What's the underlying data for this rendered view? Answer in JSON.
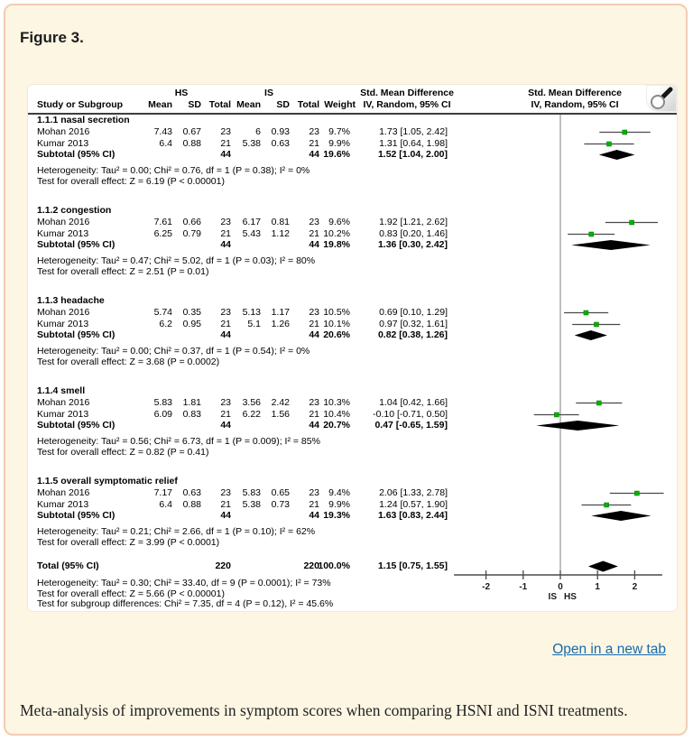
{
  "page": {
    "figure_label": "Figure 3.",
    "open_link_label": "Open in a new tab",
    "caption": "Meta-analysis of improvements in symptom scores when comparing HSNI and ISNI treatments.",
    "magnifier_icon": "magnifying-glass",
    "colors": {
      "card_bg": "#fcf6e3",
      "card_border": "#f4ccb3",
      "link": "#176bac",
      "marker_green": "#00b300",
      "diamond": "#000000",
      "axis": "#4a4a4a"
    }
  },
  "chart_data": {
    "type": "forest",
    "title": "Figure 3.",
    "columns": {
      "study": "Study or Subgroup",
      "mean": "Mean",
      "sd": "SD",
      "total": "Total",
      "weight": "Weight",
      "group1": "HS",
      "group2": "IS",
      "smd": "Std. Mean Difference",
      "method": "IV, Random, 95% CI"
    },
    "axis": {
      "tick_values": [
        -2,
        -1,
        0,
        1,
        2
      ],
      "xmin": -2.86,
      "xmax": 2.74,
      "left_label": "IS",
      "right_label": "HS"
    },
    "sections": [
      {
        "label": "1.1.1 nasal secretion",
        "studies": [
          {
            "name": "Mohan 2016",
            "hs_mean": "7.43",
            "hs_sd": "0.67",
            "hs_total": "23",
            "is_mean": "6",
            "is_sd": "0.93",
            "is_total": "23",
            "weight": "9.7%",
            "ci_text": "1.73 [1.05, 2.42]",
            "est": 1.73,
            "lo": 1.05,
            "hi": 2.42
          },
          {
            "name": "Kumar 2013",
            "hs_mean": "6.4",
            "hs_sd": "0.88",
            "hs_total": "21",
            "is_mean": "5.38",
            "is_sd": "0.63",
            "is_total": "21",
            "weight": "9.9%",
            "ci_text": "1.31 [0.64, 1.98]",
            "est": 1.31,
            "lo": 0.64,
            "hi": 1.98
          }
        ],
        "subtotal": {
          "label": "Subtotal (95% CI)",
          "hs_total": "44",
          "is_total": "44",
          "weight": "19.6%",
          "ci_text": "1.52 [1.04, 2.00]",
          "est": 1.52,
          "lo": 1.04,
          "hi": 2.0
        },
        "heterogeneity": "Heterogeneity: Tau² = 0.00; Chi² = 0.76, df = 1 (P = 0.38); I² = 0%",
        "overall_effect": "Test for overall effect: Z = 6.19 (P < 0.00001)"
      },
      {
        "label": "1.1.2 congestion",
        "studies": [
          {
            "name": "Mohan 2016",
            "hs_mean": "7.61",
            "hs_sd": "0.66",
            "hs_total": "23",
            "is_mean": "6.17",
            "is_sd": "0.81",
            "is_total": "23",
            "weight": "9.6%",
            "ci_text": "1.92 [1.21, 2.62]",
            "est": 1.92,
            "lo": 1.21,
            "hi": 2.62
          },
          {
            "name": "Kumar 2013",
            "hs_mean": "6.25",
            "hs_sd": "0.79",
            "hs_total": "21",
            "is_mean": "5.43",
            "is_sd": "1.12",
            "is_total": "21",
            "weight": "10.2%",
            "ci_text": "0.83 [0.20, 1.46]",
            "est": 0.83,
            "lo": 0.2,
            "hi": 1.46
          }
        ],
        "subtotal": {
          "label": "Subtotal (95% CI)",
          "hs_total": "44",
          "is_total": "44",
          "weight": "19.8%",
          "ci_text": "1.36 [0.30, 2.42]",
          "est": 1.36,
          "lo": 0.3,
          "hi": 2.42
        },
        "heterogeneity": "Heterogeneity: Tau² = 0.47; Chi² = 5.02, df = 1 (P = 0.03); I² = 80%",
        "overall_effect": "Test for overall effect: Z = 2.51 (P = 0.01)"
      },
      {
        "label": "1.1.3 headache",
        "studies": [
          {
            "name": "Mohan 2016",
            "hs_mean": "5.74",
            "hs_sd": "0.35",
            "hs_total": "23",
            "is_mean": "5.13",
            "is_sd": "1.17",
            "is_total": "23",
            "weight": "10.5%",
            "ci_text": "0.69 [0.10, 1.29]",
            "est": 0.69,
            "lo": 0.1,
            "hi": 1.29
          },
          {
            "name": "Kumar 2013",
            "hs_mean": "6.2",
            "hs_sd": "0.95",
            "hs_total": "21",
            "is_mean": "5.1",
            "is_sd": "1.26",
            "is_total": "21",
            "weight": "10.1%",
            "ci_text": "0.97 [0.32, 1.61]",
            "est": 0.97,
            "lo": 0.32,
            "hi": 1.61
          }
        ],
        "subtotal": {
          "label": "Subtotal (95% CI)",
          "hs_total": "44",
          "is_total": "44",
          "weight": "20.6%",
          "ci_text": "0.82 [0.38, 1.26]",
          "est": 0.82,
          "lo": 0.38,
          "hi": 1.26
        },
        "heterogeneity": "Heterogeneity: Tau² = 0.00; Chi² = 0.37, df = 1 (P = 0.54); I² = 0%",
        "overall_effect": "Test for overall effect: Z = 3.68 (P = 0.0002)"
      },
      {
        "label": "1.1.4 smell",
        "studies": [
          {
            "name": "Mohan 2016",
            "hs_mean": "5.83",
            "hs_sd": "1.81",
            "hs_total": "23",
            "is_mean": "3.56",
            "is_sd": "2.42",
            "is_total": "23",
            "weight": "10.3%",
            "ci_text": "1.04 [0.42, 1.66]",
            "est": 1.04,
            "lo": 0.42,
            "hi": 1.66
          },
          {
            "name": "Kumar 2013",
            "hs_mean": "6.09",
            "hs_sd": "0.83",
            "hs_total": "21",
            "is_mean": "6.22",
            "is_sd": "1.56",
            "is_total": "21",
            "weight": "10.4%",
            "ci_text": "-0.10 [-0.71, 0.50]",
            "est": -0.1,
            "lo": -0.71,
            "hi": 0.5
          }
        ],
        "subtotal": {
          "label": "Subtotal (95% CI)",
          "hs_total": "44",
          "is_total": "44",
          "weight": "20.7%",
          "ci_text": "0.47 [-0.65, 1.59]",
          "est": 0.47,
          "lo": -0.65,
          "hi": 1.59
        },
        "heterogeneity": "Heterogeneity: Tau² = 0.56; Chi² = 6.73, df = 1 (P = 0.009); I² = 85%",
        "overall_effect": "Test for overall effect: Z = 0.82 (P = 0.41)"
      },
      {
        "label": "1.1.5 overall symptomatic relief",
        "studies": [
          {
            "name": "Mohan 2016",
            "hs_mean": "7.17",
            "hs_sd": "0.63",
            "hs_total": "23",
            "is_mean": "5.83",
            "is_sd": "0.65",
            "is_total": "23",
            "weight": "9.4%",
            "ci_text": "2.06 [1.33, 2.78]",
            "est": 2.06,
            "lo": 1.33,
            "hi": 2.78
          },
          {
            "name": "Kumar 2013",
            "hs_mean": "6.4",
            "hs_sd": "0.88",
            "hs_total": "21",
            "is_mean": "5.38",
            "is_sd": "0.73",
            "is_total": "21",
            "weight": "9.9%",
            "ci_text": "1.24 [0.57, 1.90]",
            "est": 1.24,
            "lo": 0.57,
            "hi": 1.9
          }
        ],
        "subtotal": {
          "label": "Subtotal (95% CI)",
          "hs_total": "44",
          "is_total": "44",
          "weight": "19.3%",
          "ci_text": "1.63 [0.83, 2.44]",
          "est": 1.63,
          "lo": 0.83,
          "hi": 2.44
        },
        "heterogeneity": "Heterogeneity: Tau² = 0.21; Chi² = 2.66, df = 1 (P = 0.10); I² = 62%",
        "overall_effect": "Test for overall effect: Z = 3.99 (P < 0.0001)"
      }
    ],
    "total": {
      "label": "Total (95% CI)",
      "hs_total": "220",
      "is_total": "220",
      "weight": "100.0%",
      "ci_text": "1.15 [0.75, 1.55]",
      "est": 1.15,
      "lo": 0.75,
      "hi": 1.55,
      "heterogeneity": "Heterogeneity: Tau² = 0.30; Chi² = 33.40, df = 9 (P = 0.0001); I² = 73%",
      "overall_effect": "Test for overall effect: Z = 5.66 (P < 0.00001)",
      "subgroup_diff": "Test for subgroup differences: Chi² = 7.35, df = 4 (P = 0.12), I² = 45.6%"
    }
  }
}
